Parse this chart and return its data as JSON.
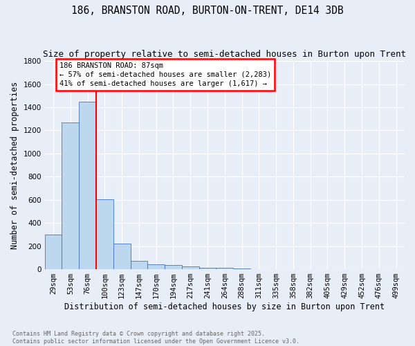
{
  "title": "186, BRANSTON ROAD, BURTON-ON-TRENT, DE14 3DB",
  "subtitle": "Size of property relative to semi-detached houses in Burton upon Trent",
  "xlabel": "Distribution of semi-detached houses by size in Burton upon Trent",
  "ylabel": "Number of semi-detached properties",
  "categories": [
    "29sqm",
    "53sqm",
    "76sqm",
    "100sqm",
    "123sqm",
    "147sqm",
    "170sqm",
    "194sqm",
    "217sqm",
    "241sqm",
    "264sqm",
    "288sqm",
    "311sqm",
    "335sqm",
    "358sqm",
    "382sqm",
    "405sqm",
    "429sqm",
    "452sqm",
    "476sqm",
    "499sqm"
  ],
  "values": [
    300,
    1270,
    1450,
    605,
    220,
    75,
    40,
    35,
    25,
    15,
    10,
    8,
    0,
    0,
    0,
    0,
    0,
    0,
    0,
    0,
    0
  ],
  "bar_color": "#bdd7ee",
  "bar_edge_color": "#4472c4",
  "red_line_x": 2.5,
  "annotation_line1": "186 BRANSTON ROAD: 87sqm",
  "annotation_line2": "← 57% of semi-detached houses are smaller (2,283)",
  "annotation_line3": "41% of semi-detached houses are larger (1,617) →",
  "footer_line1": "Contains HM Land Registry data © Crown copyright and database right 2025.",
  "footer_line2": "Contains public sector information licensed under the Open Government Licence v3.0.",
  "ylim": [
    0,
    1800
  ],
  "background_color": "#e8eef8",
  "grid_color": "#ffffff",
  "title_fontsize": 10.5,
  "subtitle_fontsize": 9,
  "ylabel_fontsize": 8.5,
  "xlabel_fontsize": 8.5,
  "tick_fontsize": 7.5,
  "annotation_fontsize": 7.5,
  "footer_fontsize": 6
}
